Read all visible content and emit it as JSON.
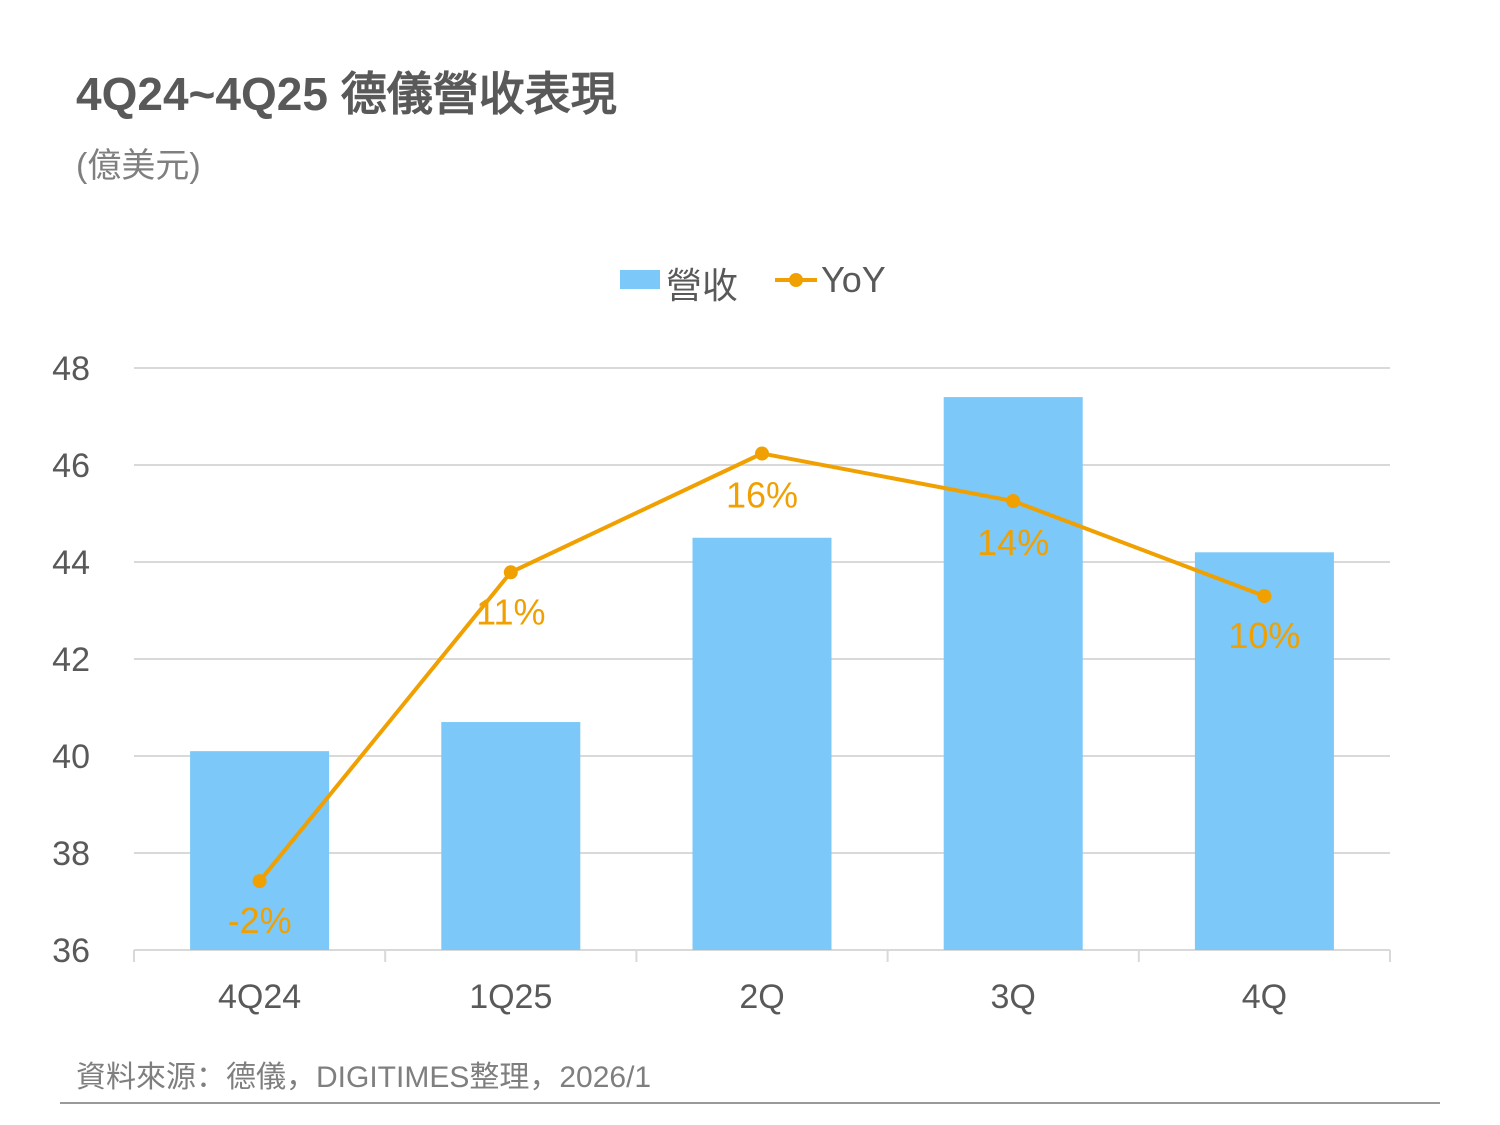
{
  "title": "4Q24~4Q25 德儀營收表現",
  "unit": "(億美元)",
  "source": "資料來源：德儀，DIGITIMES整理，2026/1",
  "chart_data": {
    "type": "bar",
    "title": "4Q24~4Q25 德儀營收表現",
    "ylabel": "(億美元)",
    "categories": [
      "4Q24",
      "1Q25",
      "2Q",
      "3Q",
      "4Q"
    ],
    "ylim": [
      36,
      48
    ],
    "yticks": [
      36,
      38,
      40,
      42,
      44,
      46,
      48
    ],
    "grid": true,
    "legend": "top",
    "series": [
      {
        "name": "營收",
        "type": "bar",
        "color": "#7cc8f8",
        "values": [
          40.1,
          40.7,
          44.5,
          47.4,
          44.2
        ]
      },
      {
        "name": "YoY",
        "type": "line",
        "color": "#f0a000",
        "axis": "secondary",
        "ylim": [
          -4.9,
          19.6
        ],
        "values": [
          -2,
          11,
          16,
          14,
          10
        ],
        "labels": [
          "-2%",
          "11%",
          "16%",
          "14%",
          "10%"
        ]
      }
    ]
  }
}
